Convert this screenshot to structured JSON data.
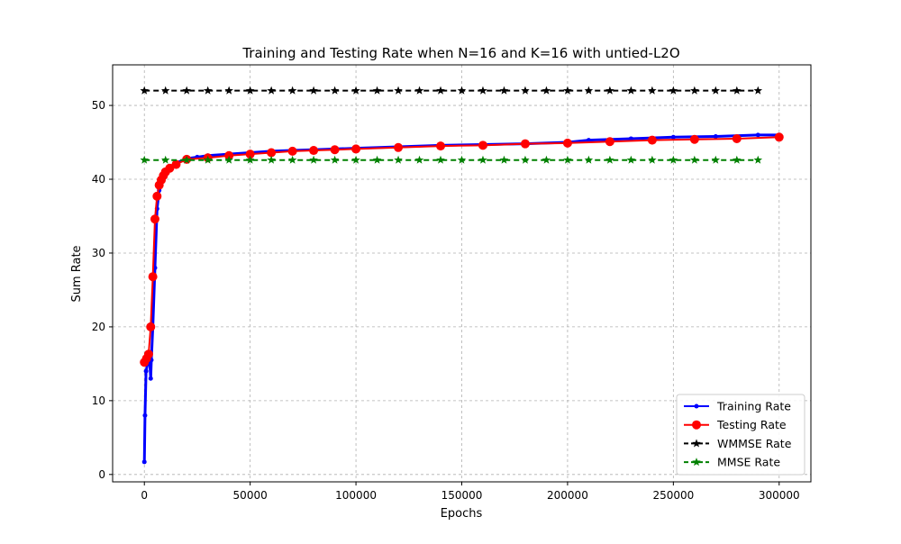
{
  "chart_data": {
    "type": "line",
    "title": "Training and Testing Rate when N=16 and K=16 with untied-L2O",
    "xlabel": "Epochs",
    "ylabel": "Sum Rate",
    "xlim": [
      -15000,
      315000
    ],
    "ylim": [
      -1,
      55.5
    ],
    "xticks": [
      0,
      50000,
      100000,
      150000,
      200000,
      250000,
      300000
    ],
    "yticks": [
      0,
      10,
      20,
      30,
      40,
      50
    ],
    "grid": true,
    "grid_style": "dashed",
    "legend_position": "lower-right",
    "series": [
      {
        "name": "Training Rate",
        "color": "#0000ff",
        "marker": "point",
        "linestyle": "solid",
        "x": [
          0,
          300,
          800,
          1500,
          2500,
          3000,
          3300,
          4000,
          5000,
          6000,
          7000,
          8000,
          10000,
          12000,
          15000,
          20000,
          25000,
          30000,
          40000,
          50000,
          60000,
          70000,
          80000,
          90000,
          100000,
          120000,
          140000,
          160000,
          180000,
          200000,
          210000,
          230000,
          250000,
          270000,
          290000,
          300000
        ],
        "y": [
          1.7,
          8,
          14,
          15,
          15.3,
          13,
          15.5,
          20,
          28,
          36,
          38.5,
          39.5,
          40.5,
          41.3,
          42.2,
          42.8,
          43.0,
          43.2,
          43.4,
          43.6,
          43.8,
          43.9,
          44.0,
          44.1,
          44.2,
          44.4,
          44.6,
          44.7,
          44.8,
          45.0,
          45.3,
          45.5,
          45.7,
          45.8,
          46.0,
          46.0
        ]
      },
      {
        "name": "Testing Rate",
        "color": "#ff0000",
        "marker": "circle",
        "linestyle": "solid",
        "x": [
          0,
          1000,
          2000,
          3000,
          4000,
          5000,
          6000,
          7000,
          8000,
          9000,
          10000,
          12000,
          15000,
          20000,
          30000,
          40000,
          50000,
          60000,
          70000,
          80000,
          90000,
          100000,
          120000,
          140000,
          160000,
          180000,
          200000,
          220000,
          240000,
          260000,
          280000,
          300000
        ],
        "y": [
          15.2,
          15.7,
          16.3,
          20.0,
          26.8,
          34.6,
          37.7,
          39.2,
          39.9,
          40.5,
          41.0,
          41.5,
          42.0,
          42.7,
          42.9,
          43.2,
          43.4,
          43.6,
          43.8,
          43.9,
          44.0,
          44.1,
          44.3,
          44.5,
          44.6,
          44.8,
          44.9,
          45.1,
          45.3,
          45.4,
          45.5,
          45.7
        ]
      },
      {
        "name": "WMMSE Rate",
        "color": "#000000",
        "marker": "star",
        "linestyle": "dashed",
        "x": [
          0,
          10000,
          20000,
          30000,
          40000,
          50000,
          60000,
          70000,
          80000,
          90000,
          100000,
          110000,
          120000,
          130000,
          140000,
          150000,
          160000,
          170000,
          180000,
          190000,
          200000,
          210000,
          220000,
          230000,
          240000,
          250000,
          260000,
          270000,
          280000,
          290000
        ],
        "y": [
          52,
          52,
          52,
          52,
          52,
          52,
          52,
          52,
          52,
          52,
          52,
          52,
          52,
          52,
          52,
          52,
          52,
          52,
          52,
          52,
          52,
          52,
          52,
          52,
          52,
          52,
          52,
          52,
          52,
          52
        ]
      },
      {
        "name": "MMSE Rate",
        "color": "#008000",
        "marker": "star",
        "linestyle": "dashed",
        "x": [
          0,
          10000,
          20000,
          30000,
          40000,
          50000,
          60000,
          70000,
          80000,
          90000,
          100000,
          110000,
          120000,
          130000,
          140000,
          150000,
          160000,
          170000,
          180000,
          190000,
          200000,
          210000,
          220000,
          230000,
          240000,
          250000,
          260000,
          270000,
          280000,
          290000
        ],
        "y": [
          42.6,
          42.6,
          42.6,
          42.6,
          42.6,
          42.6,
          42.6,
          42.6,
          42.6,
          42.6,
          42.6,
          42.6,
          42.6,
          42.6,
          42.6,
          42.6,
          42.6,
          42.6,
          42.6,
          42.6,
          42.6,
          42.6,
          42.6,
          42.6,
          42.6,
          42.6,
          42.6,
          42.6,
          42.6,
          42.6
        ]
      }
    ]
  }
}
